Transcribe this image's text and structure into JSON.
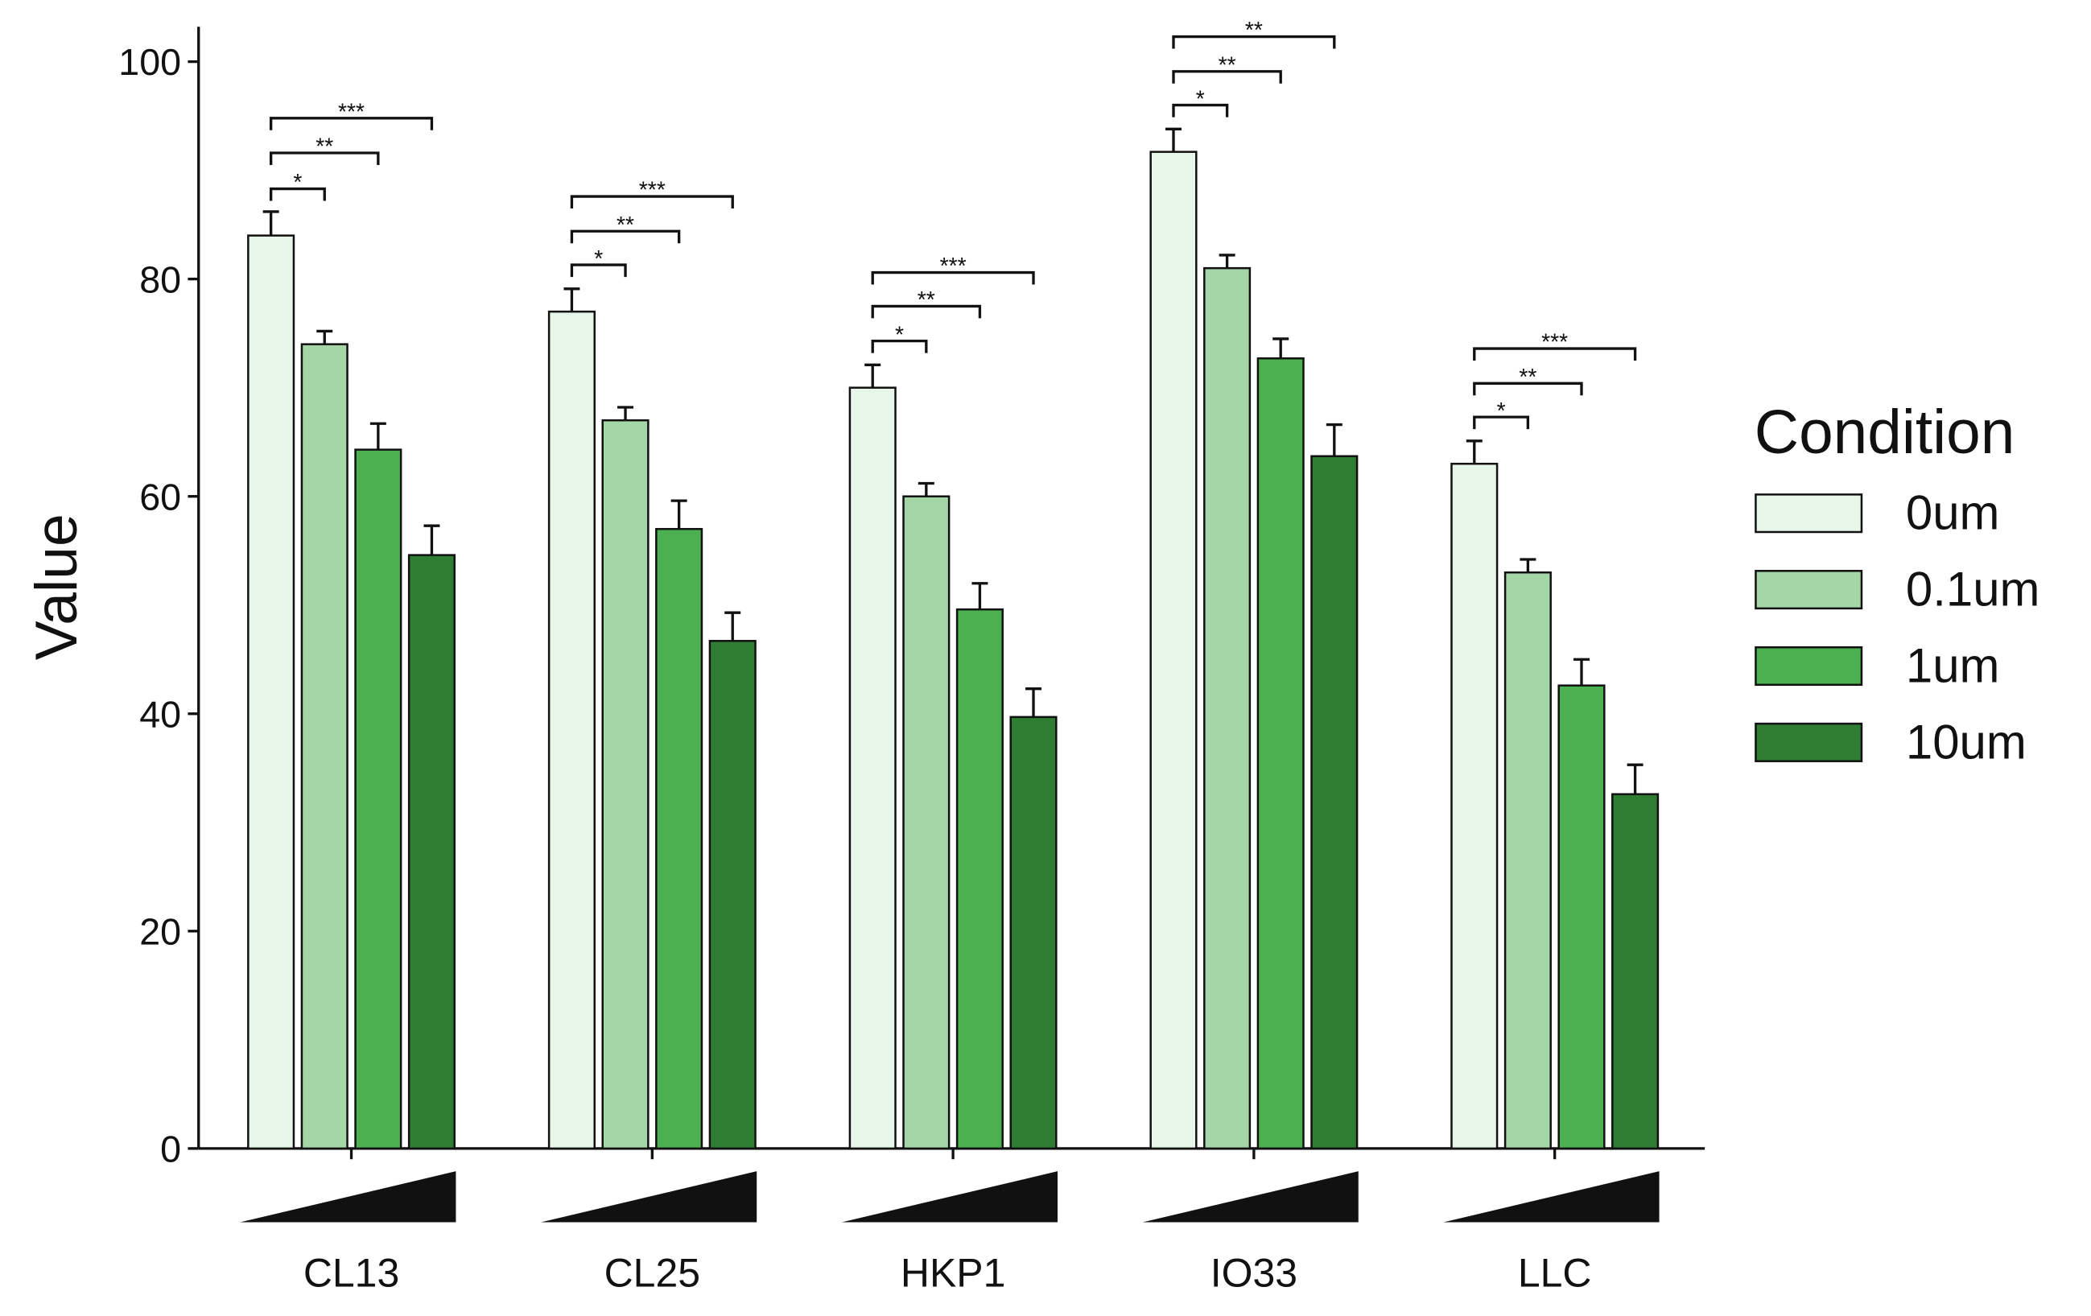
{
  "chart_data": {
    "type": "bar",
    "ylabel": "Value",
    "ylim": [
      0,
      100
    ],
    "yticks": [
      0,
      20,
      40,
      60,
      80,
      100
    ],
    "categories": [
      "CL13",
      "CL25",
      "HKP1",
      "IO33",
      "LLC"
    ],
    "legend": {
      "title": "Condition",
      "position": "right"
    },
    "series": [
      {
        "name": "0um",
        "color": "#e8f5e9",
        "values": [
          84,
          77,
          70,
          91.7,
          63
        ],
        "errors": [
          2.2,
          2.1,
          2.1,
          2.1,
          2.1
        ]
      },
      {
        "name": "0.1um",
        "color": "#a5d6a7",
        "values": [
          74,
          67,
          60,
          81,
          53
        ],
        "errors": [
          1.2,
          1.2,
          1.2,
          1.2,
          1.2
        ]
      },
      {
        "name": "1um",
        "color": "#4caf50",
        "values": [
          64.3,
          57,
          49.6,
          72.7,
          42.6
        ],
        "errors": [
          2.4,
          2.6,
          2.4,
          1.8,
          2.4
        ]
      },
      {
        "name": "10um",
        "color": "#2e7d32",
        "values": [
          54.6,
          46.7,
          39.7,
          63.7,
          32.6
        ],
        "errors": [
          2.7,
          2.6,
          2.6,
          2.9,
          2.7
        ]
      }
    ],
    "significance": [
      {
        "category": "CL13",
        "comparisons": [
          {
            "from": "0um",
            "to": "0.1um",
            "label": "*",
            "y": 88.3
          },
          {
            "from": "0um",
            "to": "1um",
            "label": "**",
            "y": 91.6
          },
          {
            "from": "0um",
            "to": "10um",
            "label": "***",
            "y": 94.8
          }
        ]
      },
      {
        "category": "CL25",
        "comparisons": [
          {
            "from": "0um",
            "to": "0.1um",
            "label": "*",
            "y": 81.3
          },
          {
            "from": "0um",
            "to": "1um",
            "label": "**",
            "y": 84.4
          },
          {
            "from": "0um",
            "to": "10um",
            "label": "***",
            "y": 87.6
          }
        ]
      },
      {
        "category": "HKP1",
        "comparisons": [
          {
            "from": "0um",
            "to": "0.1um",
            "label": "*",
            "y": 74.3
          },
          {
            "from": "0um",
            "to": "1um",
            "label": "**",
            "y": 77.5
          },
          {
            "from": "0um",
            "to": "10um",
            "label": "***",
            "y": 80.6
          }
        ]
      },
      {
        "category": "IO33",
        "comparisons": [
          {
            "from": "0um",
            "to": "0.1um",
            "label": "*",
            "y": 96.0
          },
          {
            "from": "0um",
            "to": "1um",
            "label": "**",
            "y": 99.1
          },
          {
            "from": "0um",
            "to": "10um",
            "label": "**",
            "y": 102.3
          }
        ]
      },
      {
        "category": "LLC",
        "comparisons": [
          {
            "from": "0um",
            "to": "0.1um",
            "label": "*",
            "y": 67.3
          },
          {
            "from": "0um",
            "to": "1um",
            "label": "**",
            "y": 70.4
          },
          {
            "from": "0um",
            "to": "10um",
            "label": "***",
            "y": 73.6
          }
        ]
      }
    ]
  }
}
